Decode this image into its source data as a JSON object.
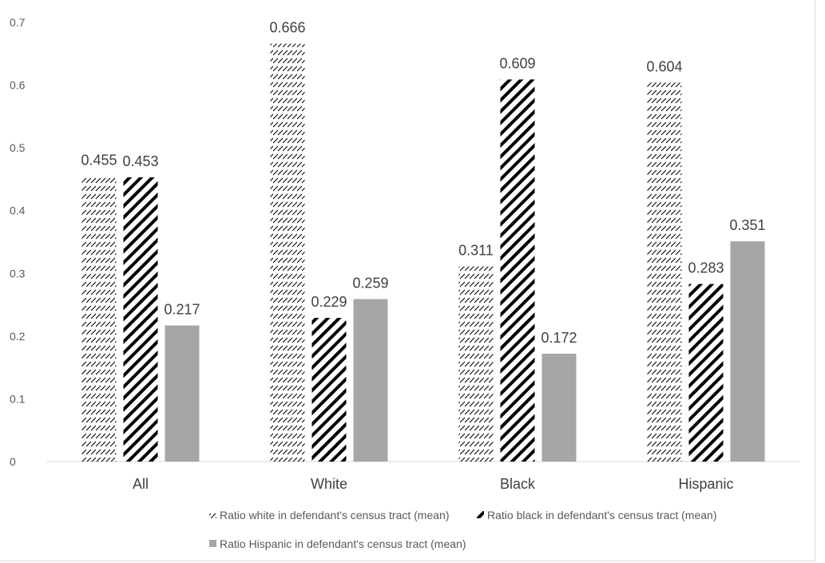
{
  "chart_data": {
    "type": "bar",
    "categories": [
      "All",
      "White",
      "Black",
      "Hispanic"
    ],
    "series": [
      {
        "name": "Ratio white in defendant's census tract (mean)",
        "values": [
          0.455,
          0.666,
          0.311,
          0.604
        ],
        "labels": [
          "0.455",
          "0.666",
          "0.311",
          "0.604"
        ],
        "fill": "pattern-light-diagonal"
      },
      {
        "name": "Ratio black in defendant's census tract (mean)",
        "values": [
          0.453,
          0.229,
          0.609,
          0.283
        ],
        "labels": [
          "0.453",
          "0.229",
          "0.609",
          "0.283"
        ],
        "fill": "pattern-wide-diagonal"
      },
      {
        "name": "Ratio Hispanic in defendant's census tract (mean)",
        "values": [
          0.217,
          0.259,
          0.172,
          0.351
        ],
        "labels": [
          "0.217",
          "0.259",
          "0.172",
          "0.351"
        ],
        "fill": "solid-gray"
      }
    ],
    "yticks": [
      "0",
      "0.1",
      "0.2",
      "0.3",
      "0.4",
      "0.5",
      "0.6",
      "0.7"
    ],
    "ylim": [
      0,
      0.7
    ],
    "title": "",
    "xlabel": "",
    "ylabel": "",
    "grid": false,
    "legend_position": "bottom",
    "colors": {
      "bar_gray": "#a6a6a6",
      "pattern_ink": "#000000",
      "axis": "#d9d9d9",
      "text": "#404040"
    }
  }
}
